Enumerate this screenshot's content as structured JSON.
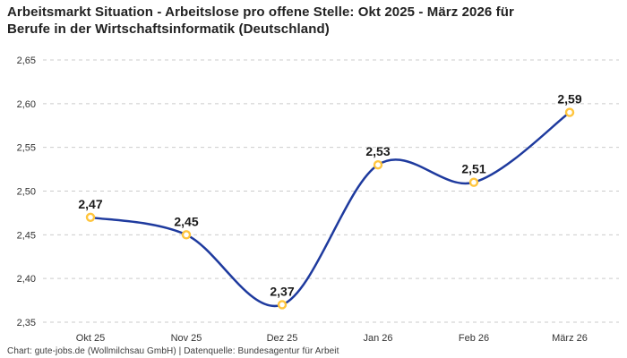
{
  "header": {
    "title_line1": "Arbeitsmarkt Situation - Arbeitslose pro offene Stelle: Okt 2025 - März 2026 für",
    "title_line2": "Berufe in der Wirtschaftsinformatik (Deutschland)"
  },
  "footer": {
    "credit": "Chart: gute-jobs.de (Wollmilchsau GmbH) | Datenquelle: Bundesagentur für Arbeit"
  },
  "chart_data": {
    "type": "line",
    "title": "Arbeitsmarkt Situation - Arbeitslose pro offene Stelle: Okt 2025 - März 2026 für Berufe in der Wirtschaftsinformatik (Deutschland)",
    "categories": [
      "Okt 25",
      "Nov 25",
      "Dez 25",
      "Jan 26",
      "Feb 26",
      "März 26"
    ],
    "values": [
      2.47,
      2.45,
      2.37,
      2.53,
      2.51,
      2.59
    ],
    "point_labels": [
      "2,47",
      "2,45",
      "2,37",
      "2,53",
      "2,51",
      "2,59"
    ],
    "ylim": [
      2.35,
      2.65
    ],
    "yticks": [
      2.65,
      2.6,
      2.55,
      2.5,
      2.45,
      2.4,
      2.35
    ],
    "ytick_labels": [
      "2,65",
      "2,60",
      "2,55",
      "2,50",
      "2,45",
      "2,40",
      "2,35"
    ],
    "xlabel": "",
    "ylabel": "",
    "grid": "horizontal-dashed",
    "legend": "none",
    "colors": {
      "line": "#1e3a9e",
      "marker_ring": "#ffc53d",
      "marker_fill": "#ffffff",
      "gridline": "#cbcbcb",
      "axis_text": "#333333",
      "value_label": "#1a1a1a",
      "title_text": "#222222",
      "footer_text": "#3c3c3c"
    }
  }
}
